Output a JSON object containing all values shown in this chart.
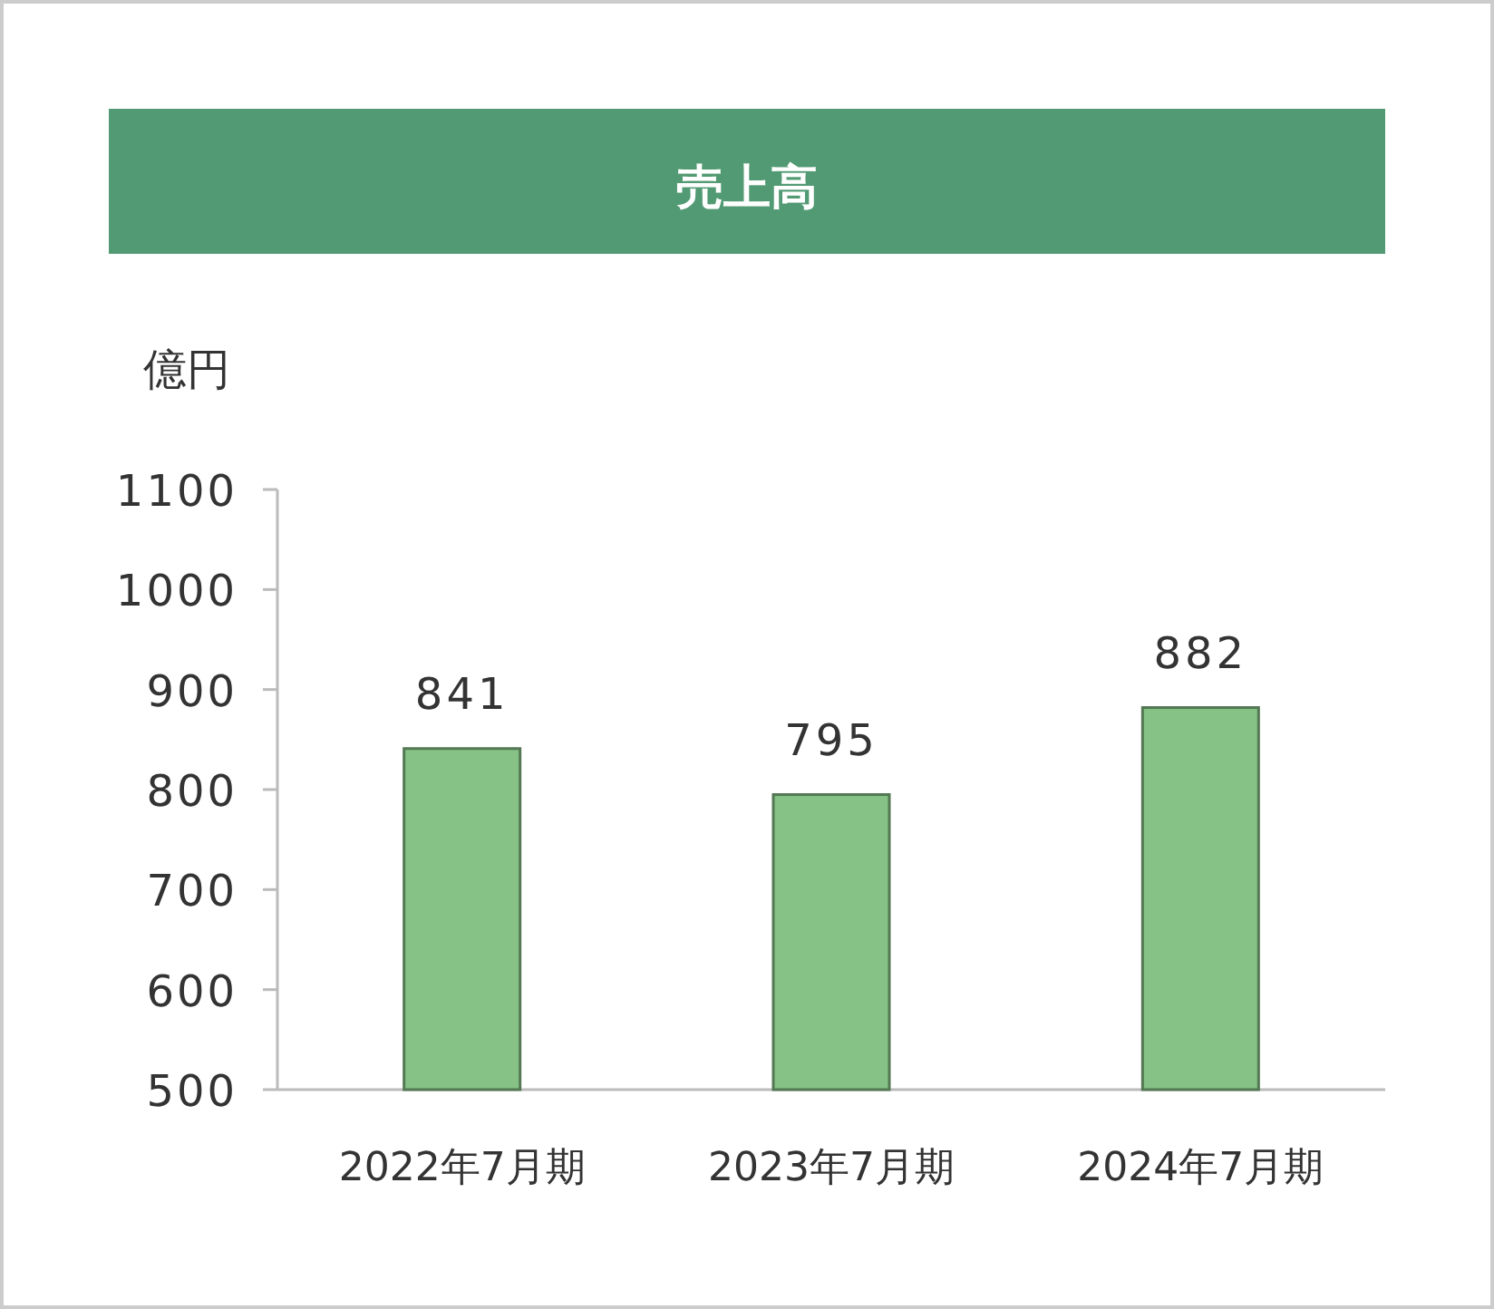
{
  "chart_data": {
    "type": "bar",
    "title": "売上高",
    "ylabel": "億円",
    "categories": [
      "2022年7月期",
      "2023年7月期",
      "2024年7月期"
    ],
    "values": [
      841,
      795,
      882
    ],
    "color": "#86c186",
    "ylim": [
      500,
      1100
    ],
    "yticks": [
      500,
      600,
      700,
      800,
      900,
      1000,
      1100
    ],
    "data_labels": true
  }
}
